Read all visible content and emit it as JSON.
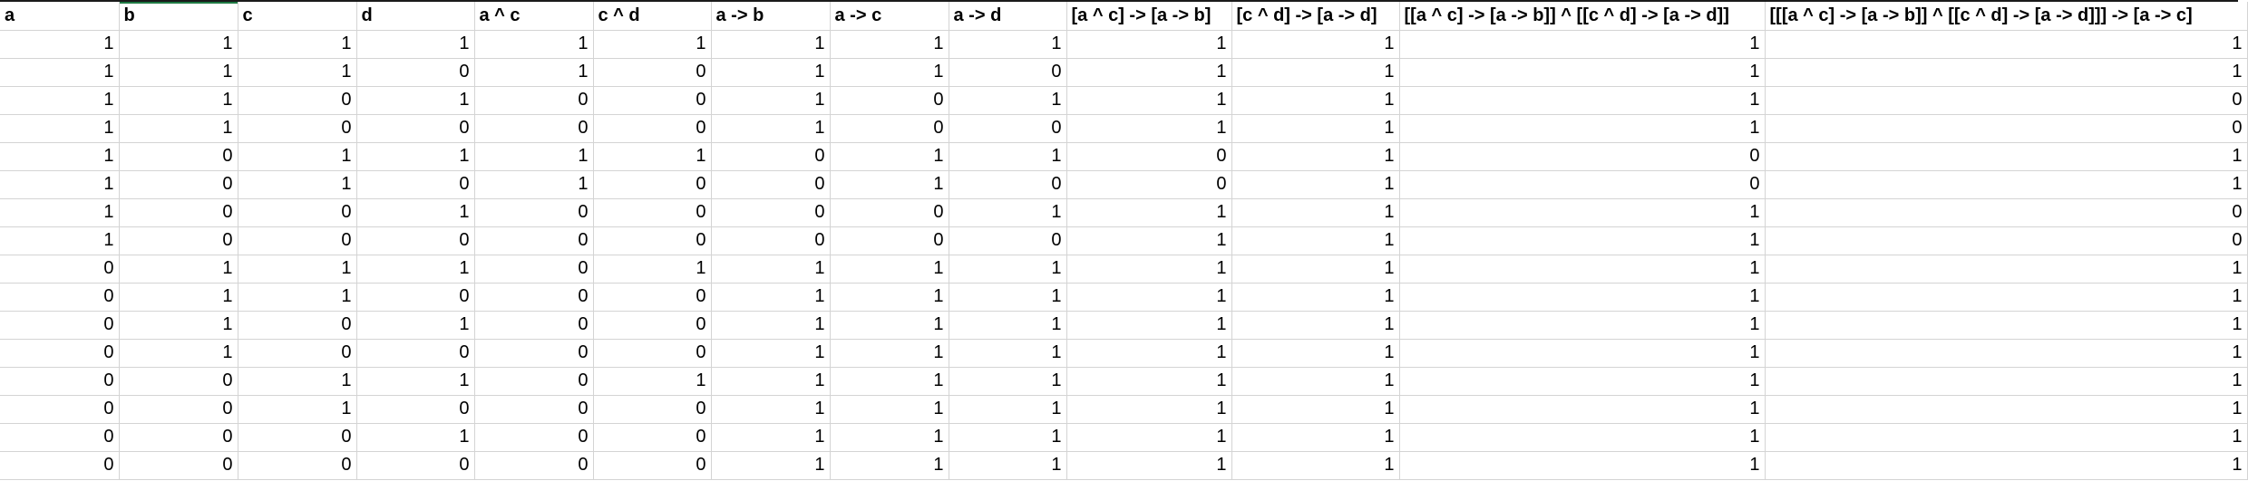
{
  "sheet": {
    "headers": [
      "a",
      "b",
      "c",
      "d",
      "a ^ c",
      "c ^ d",
      "a -> b",
      "a -> c",
      "a -> d",
      "[a ^ c] -> [a -> b]",
      "[c ^ d] -> [a -> d]",
      "[[a ^ c] -> [a -> b]] ^ [[c ^ d] -> [a -> d]]",
      "[[[a ^ c] -> [a -> b]] ^ [[c ^ d] -> [a -> d]]] -> [a -> c]"
    ],
    "rows": [
      [
        "1",
        "1",
        "1",
        "1",
        "1",
        "1",
        "1",
        "1",
        "1",
        "1",
        "1",
        "1",
        "1"
      ],
      [
        "1",
        "1",
        "1",
        "0",
        "1",
        "0",
        "1",
        "1",
        "0",
        "1",
        "1",
        "1",
        "1"
      ],
      [
        "1",
        "1",
        "0",
        "1",
        "0",
        "0",
        "1",
        "0",
        "1",
        "1",
        "1",
        "1",
        "0"
      ],
      [
        "1",
        "1",
        "0",
        "0",
        "0",
        "0",
        "1",
        "0",
        "0",
        "1",
        "1",
        "1",
        "0"
      ],
      [
        "1",
        "0",
        "1",
        "1",
        "1",
        "1",
        "0",
        "1",
        "1",
        "0",
        "1",
        "0",
        "1"
      ],
      [
        "1",
        "0",
        "1",
        "0",
        "1",
        "0",
        "0",
        "1",
        "0",
        "0",
        "1",
        "0",
        "1"
      ],
      [
        "1",
        "0",
        "0",
        "1",
        "0",
        "0",
        "0",
        "0",
        "1",
        "1",
        "1",
        "1",
        "0"
      ],
      [
        "1",
        "0",
        "0",
        "0",
        "0",
        "0",
        "0",
        "0",
        "0",
        "1",
        "1",
        "1",
        "0"
      ],
      [
        "0",
        "1",
        "1",
        "1",
        "0",
        "1",
        "1",
        "1",
        "1",
        "1",
        "1",
        "1",
        "1"
      ],
      [
        "0",
        "1",
        "1",
        "0",
        "0",
        "0",
        "1",
        "1",
        "1",
        "1",
        "1",
        "1",
        "1"
      ],
      [
        "0",
        "1",
        "0",
        "1",
        "0",
        "0",
        "1",
        "1",
        "1",
        "1",
        "1",
        "1",
        "1"
      ],
      [
        "0",
        "1",
        "0",
        "0",
        "0",
        "0",
        "1",
        "1",
        "1",
        "1",
        "1",
        "1",
        "1"
      ],
      [
        "0",
        "0",
        "1",
        "1",
        "0",
        "1",
        "1",
        "1",
        "1",
        "1",
        "1",
        "1",
        "1"
      ],
      [
        "0",
        "0",
        "1",
        "0",
        "0",
        "0",
        "1",
        "1",
        "1",
        "1",
        "1",
        "1",
        "1"
      ],
      [
        "0",
        "0",
        "0",
        "1",
        "0",
        "0",
        "1",
        "1",
        "1",
        "1",
        "1",
        "1",
        "1"
      ],
      [
        "0",
        "0",
        "0",
        "0",
        "0",
        "0",
        "1",
        "1",
        "1",
        "1",
        "1",
        "1",
        "1"
      ]
    ],
    "selection_color": "#1f7a44",
    "gridline_color": "#d4d4d4"
  }
}
